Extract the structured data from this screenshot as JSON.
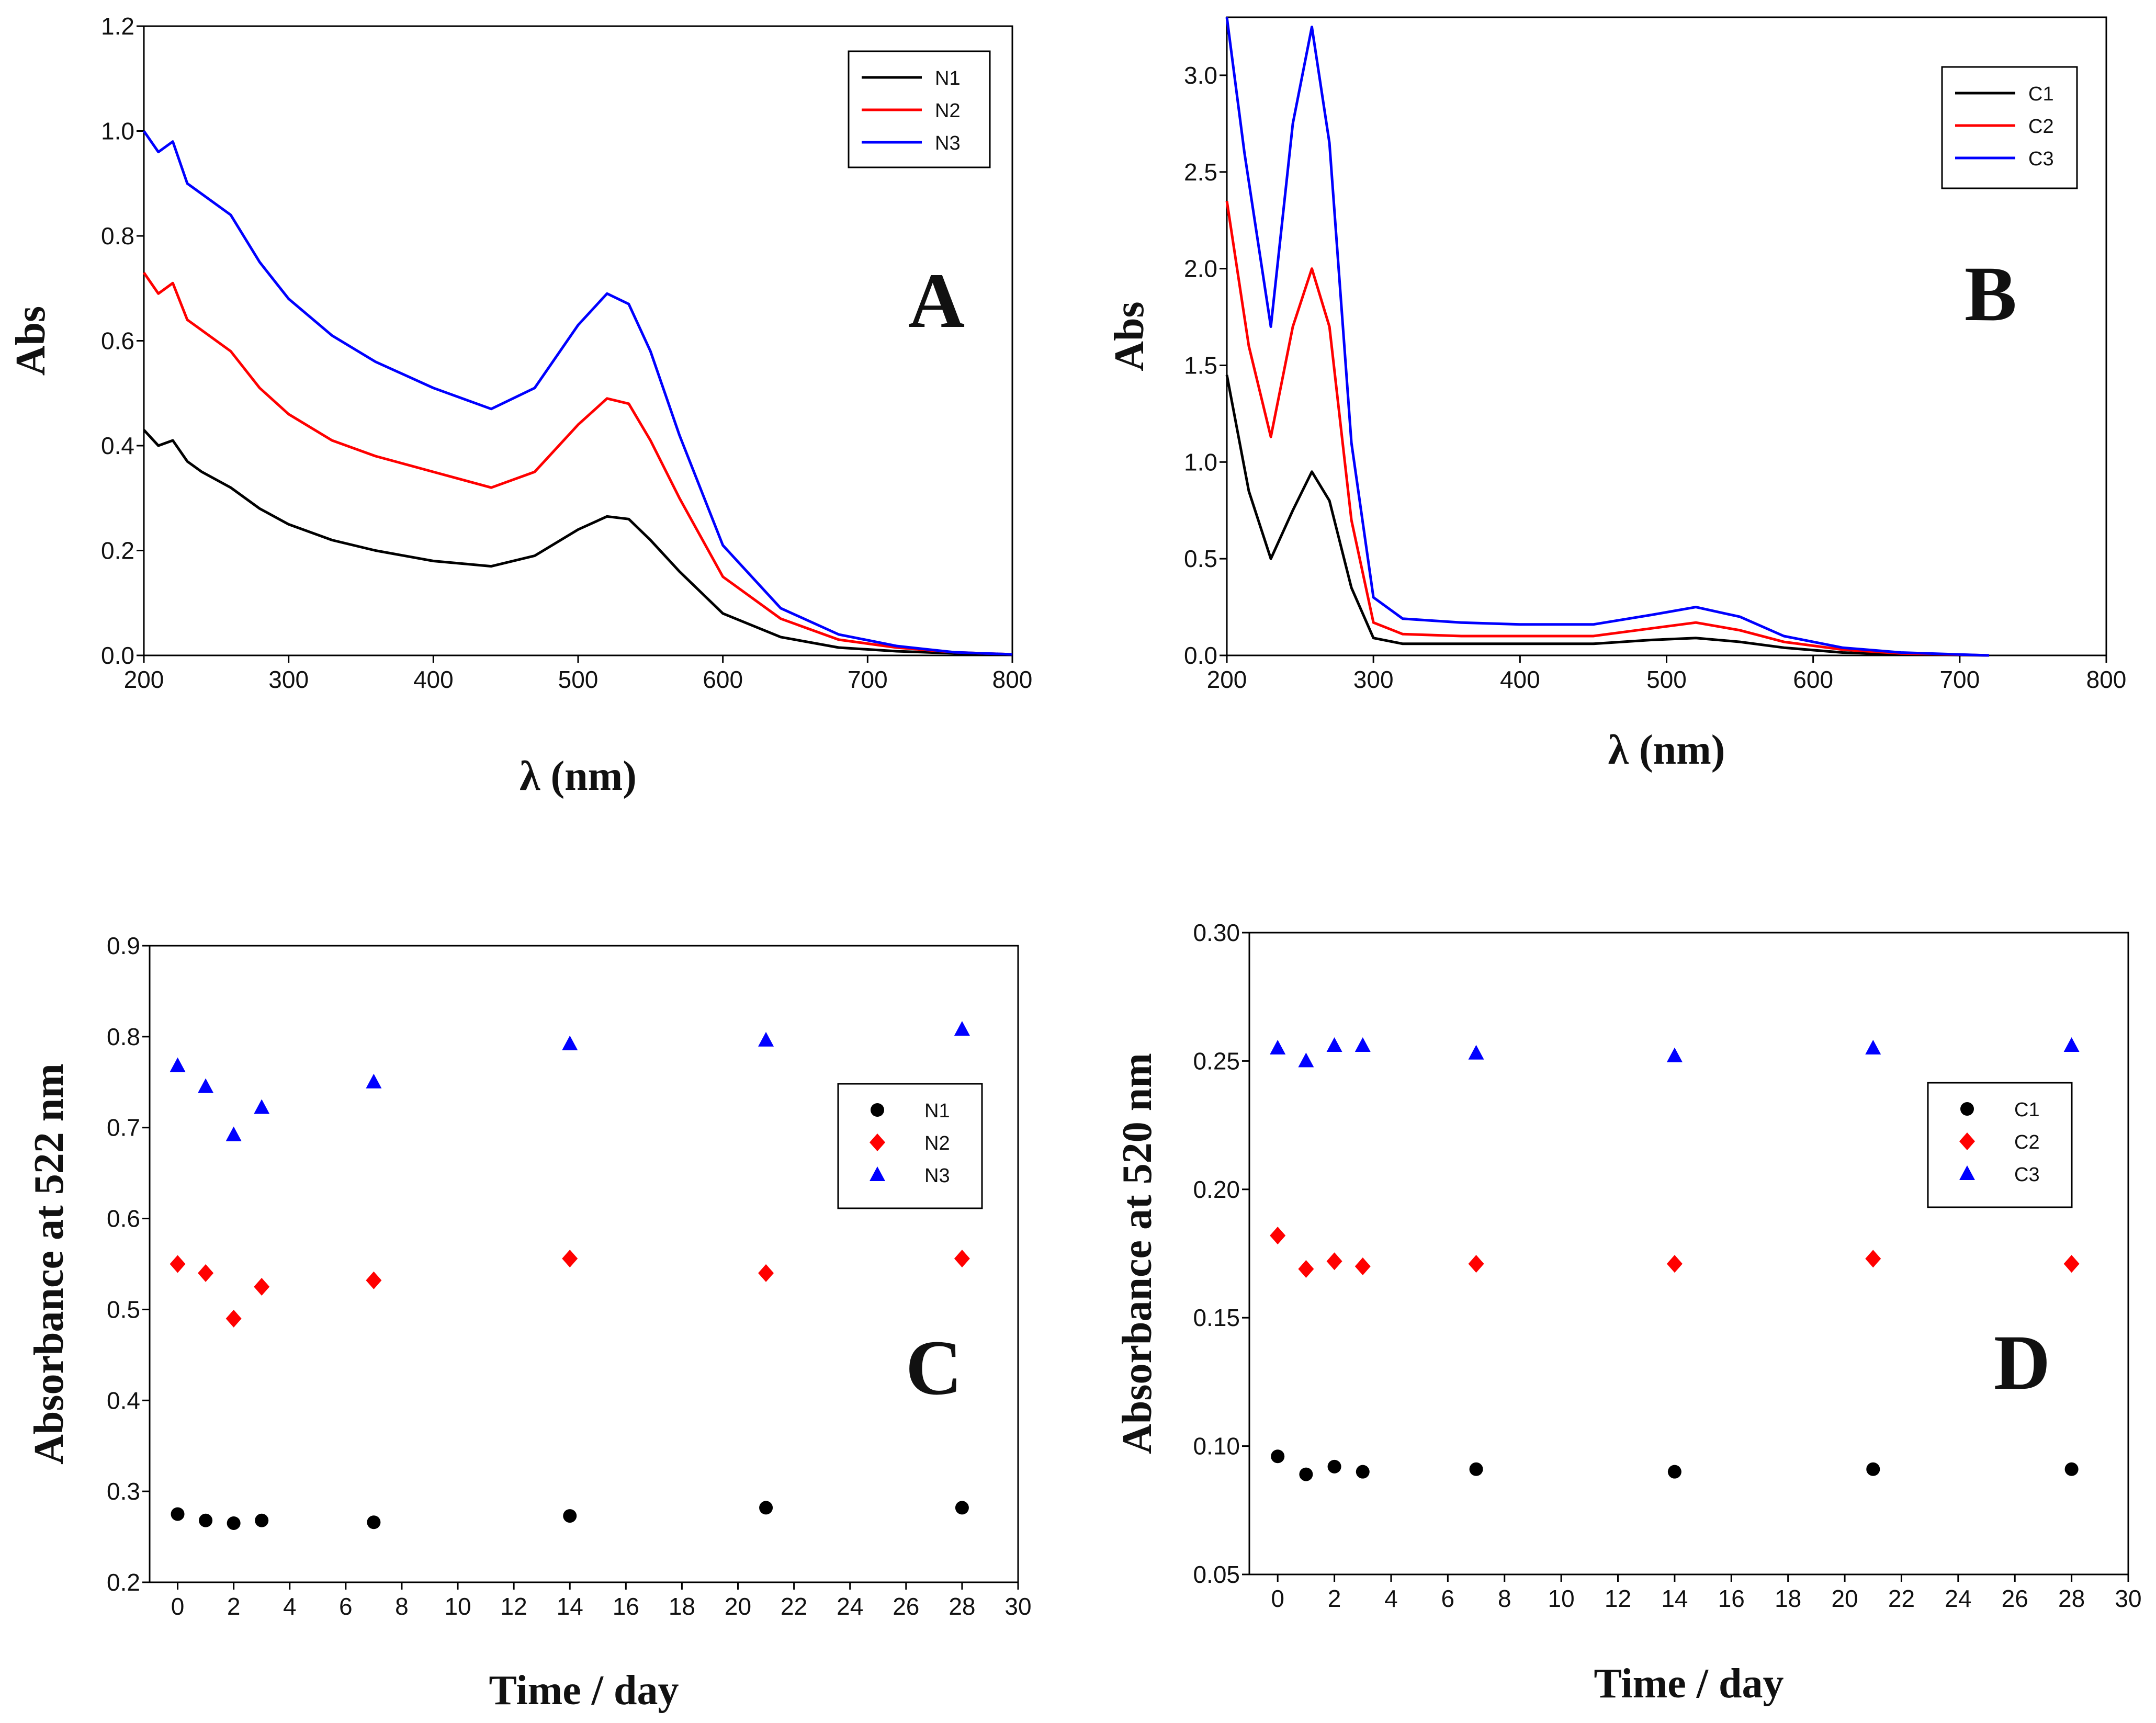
{
  "chart_data": [
    {
      "panel": "A",
      "type": "line",
      "panel_label": "A",
      "xlabel": "λ (nm)",
      "ylabel": "Abs",
      "xlim": [
        200,
        800
      ],
      "ylim": [
        0,
        1.2
      ],
      "xticks": [
        "200",
        "300",
        "400",
        "500",
        "600",
        "700",
        "800"
      ],
      "yticks": [
        "0.0",
        "0.2",
        "0.4",
        "0.6",
        "0.8",
        "1.0",
        "1.2"
      ],
      "legend": [
        "N1",
        "N2",
        "N3"
      ],
      "series": [
        {
          "name": "N1",
          "color": "#000000",
          "x": [
            200,
            210,
            220,
            230,
            240,
            260,
            280,
            300,
            330,
            360,
            400,
            440,
            470,
            500,
            520,
            535,
            550,
            570,
            600,
            640,
            680,
            720,
            760,
            800
          ],
          "y": [
            0.43,
            0.4,
            0.41,
            0.37,
            0.35,
            0.32,
            0.28,
            0.25,
            0.22,
            0.2,
            0.18,
            0.17,
            0.19,
            0.24,
            0.265,
            0.26,
            0.22,
            0.16,
            0.08,
            0.035,
            0.015,
            0.008,
            0.004,
            0.001
          ]
        },
        {
          "name": "N2",
          "color": "#ff0000",
          "x": [
            200,
            210,
            220,
            230,
            240,
            260,
            280,
            300,
            330,
            360,
            400,
            440,
            470,
            500,
            520,
            535,
            550,
            570,
            600,
            640,
            680,
            720,
            760,
            800
          ],
          "y": [
            0.73,
            0.69,
            0.71,
            0.64,
            0.62,
            0.58,
            0.51,
            0.46,
            0.41,
            0.38,
            0.35,
            0.32,
            0.35,
            0.44,
            0.49,
            0.48,
            0.41,
            0.3,
            0.15,
            0.07,
            0.03,
            0.015,
            0.006,
            0.002
          ]
        },
        {
          "name": "N3",
          "color": "#0000ff",
          "x": [
            200,
            210,
            220,
            230,
            240,
            260,
            280,
            300,
            330,
            360,
            400,
            440,
            470,
            500,
            520,
            535,
            550,
            570,
            600,
            640,
            680,
            720,
            760,
            800
          ],
          "y": [
            1.0,
            0.96,
            0.98,
            0.9,
            0.88,
            0.84,
            0.75,
            0.68,
            0.61,
            0.56,
            0.51,
            0.47,
            0.51,
            0.63,
            0.69,
            0.67,
            0.58,
            0.42,
            0.21,
            0.09,
            0.04,
            0.018,
            0.006,
            0.002
          ]
        }
      ]
    },
    {
      "panel": "B",
      "type": "line",
      "panel_label": "B",
      "xlabel": "λ (nm)",
      "ylabel": "Abs",
      "xlim": [
        200,
        800
      ],
      "ylim": [
        0,
        3.3
      ],
      "xticks": [
        "200",
        "300",
        "400",
        "500",
        "600",
        "700",
        "800"
      ],
      "yticks": [
        "0.0",
        "0.5",
        "1.0",
        "1.5",
        "2.0",
        "2.5",
        "3.0"
      ],
      "legend": [
        "C1",
        "C2",
        "C3"
      ],
      "series": [
        {
          "name": "C1",
          "color": "#000000",
          "x": [
            200,
            215,
            230,
            245,
            258,
            270,
            285,
            300,
            320,
            360,
            400,
            450,
            490,
            520,
            550,
            580,
            620,
            660,
            700,
            720
          ],
          "y": [
            1.45,
            0.85,
            0.5,
            0.75,
            0.95,
            0.8,
            0.35,
            0.09,
            0.06,
            0.06,
            0.06,
            0.06,
            0.08,
            0.09,
            0.07,
            0.04,
            0.015,
            0.005,
            0.002,
            0.0
          ]
        },
        {
          "name": "C2",
          "color": "#ff0000",
          "x": [
            200,
            215,
            230,
            245,
            258,
            270,
            285,
            300,
            320,
            360,
            400,
            450,
            490,
            520,
            550,
            580,
            620,
            660,
            700,
            720
          ],
          "y": [
            2.35,
            1.6,
            1.13,
            1.7,
            2.0,
            1.7,
            0.7,
            0.17,
            0.11,
            0.1,
            0.1,
            0.1,
            0.14,
            0.17,
            0.13,
            0.07,
            0.03,
            0.01,
            0.004,
            0.0
          ]
        },
        {
          "name": "C3",
          "color": "#0000ff",
          "x": [
            200,
            212,
            230,
            245,
            258,
            270,
            285,
            300,
            320,
            360,
            400,
            450,
            490,
            520,
            550,
            580,
            620,
            660,
            700,
            720
          ],
          "y": [
            3.3,
            2.6,
            1.7,
            2.75,
            3.25,
            2.65,
            1.1,
            0.3,
            0.19,
            0.17,
            0.16,
            0.16,
            0.21,
            0.25,
            0.2,
            0.1,
            0.04,
            0.015,
            0.005,
            0.0
          ]
        }
      ]
    },
    {
      "panel": "C",
      "type": "scatter",
      "panel_label": "C",
      "xlabel": "Time / day",
      "ylabel": "Absorbance at 522 nm",
      "xlim": [
        -1,
        30
      ],
      "ylim": [
        0.2,
        0.9
      ],
      "xticks": [
        "0",
        "2",
        "4",
        "6",
        "8",
        "10",
        "12",
        "14",
        "16",
        "18",
        "20",
        "22",
        "24",
        "26",
        "28",
        "30"
      ],
      "yticks": [
        "0.2",
        "0.3",
        "0.4",
        "0.5",
        "0.6",
        "0.7",
        "0.8",
        "0.9"
      ],
      "legend": [
        "N1",
        "N2",
        "N3"
      ],
      "series": [
        {
          "name": "N1",
          "color": "#000000",
          "marker": "circle",
          "x": [
            0,
            1,
            2,
            3,
            7,
            14,
            21,
            28
          ],
          "y": [
            0.275,
            0.268,
            0.265,
            0.268,
            0.266,
            0.273,
            0.282,
            0.282
          ]
        },
        {
          "name": "N2",
          "color": "#ff0000",
          "marker": "diamond",
          "x": [
            0,
            1,
            2,
            3,
            7,
            14,
            21,
            28
          ],
          "y": [
            0.55,
            0.54,
            0.49,
            0.525,
            0.532,
            0.556,
            0.54,
            0.556
          ]
        },
        {
          "name": "N3",
          "color": "#0000ff",
          "marker": "triangle",
          "x": [
            0,
            1,
            2,
            3,
            7,
            14,
            21,
            28
          ],
          "y": [
            0.768,
            0.745,
            0.692,
            0.722,
            0.75,
            0.792,
            0.796,
            0.808
          ]
        }
      ]
    },
    {
      "panel": "D",
      "type": "scatter",
      "panel_label": "D",
      "xlabel": "Time / day",
      "ylabel": "Absorbance at 520 nm",
      "xlim": [
        -1,
        30
      ],
      "ylim": [
        0.05,
        0.3
      ],
      "xticks": [
        "0",
        "2",
        "4",
        "6",
        "8",
        "10",
        "12",
        "14",
        "16",
        "18",
        "20",
        "22",
        "24",
        "26",
        "28",
        "30"
      ],
      "yticks": [
        "0.05",
        "0.10",
        "0.15",
        "0.20",
        "0.25",
        "0.30"
      ],
      "legend": [
        "C1",
        "C2",
        "C3"
      ],
      "series": [
        {
          "name": "C1",
          "color": "#000000",
          "marker": "circle",
          "x": [
            0,
            1,
            2,
            3,
            7,
            14,
            21,
            28
          ],
          "y": [
            0.096,
            0.089,
            0.092,
            0.09,
            0.091,
            0.09,
            0.091,
            0.091
          ]
        },
        {
          "name": "C2",
          "color": "#ff0000",
          "marker": "diamond",
          "x": [
            0,
            1,
            2,
            3,
            7,
            14,
            21,
            28
          ],
          "y": [
            0.182,
            0.169,
            0.172,
            0.17,
            0.171,
            0.171,
            0.173,
            0.171
          ]
        },
        {
          "name": "C3",
          "color": "#0000ff",
          "marker": "triangle",
          "x": [
            0,
            1,
            2,
            3,
            7,
            14,
            21,
            28
          ],
          "y": [
            0.255,
            0.25,
            0.256,
            0.256,
            0.253,
            0.252,
            0.255,
            0.256
          ]
        }
      ]
    }
  ]
}
